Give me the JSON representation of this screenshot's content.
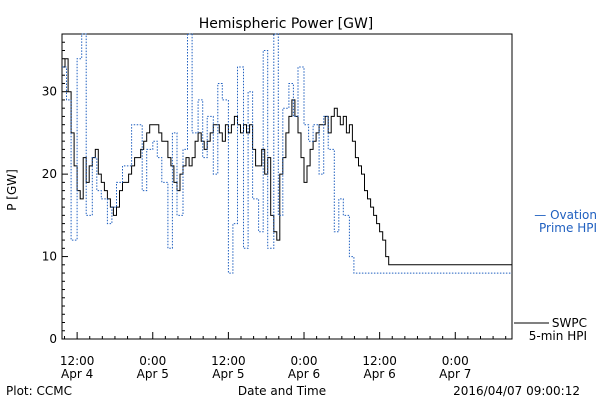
{
  "chart_data": {
    "type": "line",
    "title": "Hemispheric Power [GW]",
    "ylabel": "P [GW]",
    "xlabel": "Date and Time",
    "ylim": [
      0,
      37
    ],
    "yticks": [
      0,
      10,
      20,
      30
    ],
    "xlim": [
      4.4,
      7.375
    ],
    "xticks": [
      {
        "x": 4.5,
        "line1": "12:00",
        "line2": "Apr 4"
      },
      {
        "x": 5.0,
        "line1": "0:00",
        "line2": "Apr 5"
      },
      {
        "x": 5.5,
        "line1": "12:00",
        "line2": "Apr 5"
      },
      {
        "x": 6.0,
        "line1": "0:00",
        "line2": "Apr 6"
      },
      {
        "x": 6.5,
        "line1": "12:00",
        "line2": "Apr 6"
      },
      {
        "x": 7.0,
        "line1": "0:00",
        "line2": "Apr 7"
      }
    ],
    "x_unit": "days (April 2016)",
    "grid": false,
    "series": [
      {
        "name": "SWPC 5-min HPI",
        "color": "#000000",
        "style": "solid",
        "x": [
          4.4,
          4.42,
          4.44,
          4.46,
          4.48,
          4.5,
          4.52,
          4.54,
          4.56,
          4.58,
          4.6,
          4.62,
          4.64,
          4.66,
          4.68,
          4.7,
          4.72,
          4.74,
          4.76,
          4.78,
          4.8,
          4.82,
          4.84,
          4.86,
          4.88,
          4.9,
          4.92,
          4.94,
          4.96,
          4.98,
          5.0,
          5.02,
          5.04,
          5.06,
          5.08,
          5.1,
          5.12,
          5.14,
          5.16,
          5.18,
          5.2,
          5.22,
          5.24,
          5.26,
          5.28,
          5.3,
          5.32,
          5.34,
          5.36,
          5.38,
          5.4,
          5.42,
          5.44,
          5.46,
          5.48,
          5.5,
          5.52,
          5.54,
          5.56,
          5.58,
          5.6,
          5.62,
          5.64,
          5.66,
          5.68,
          5.7,
          5.72,
          5.74,
          5.76,
          5.78,
          5.8,
          5.82,
          5.84,
          5.86,
          5.88,
          5.9,
          5.92,
          5.94,
          5.96,
          5.98,
          6.0,
          6.02,
          6.04,
          6.06,
          6.08,
          6.1,
          6.12,
          6.14,
          6.16,
          6.18,
          6.2,
          6.22,
          6.24,
          6.26,
          6.28,
          6.3,
          6.32,
          6.34,
          6.36,
          6.38,
          6.4,
          6.42,
          6.44,
          6.46,
          6.48,
          6.5,
          6.52,
          6.54,
          6.56,
          6.58,
          6.6,
          6.62,
          6.64,
          6.66,
          6.68,
          6.7,
          6.72,
          6.74,
          6.76,
          6.78,
          6.8,
          6.82,
          6.84,
          6.86,
          6.88,
          6.9,
          6.92,
          6.94,
          6.96,
          6.98,
          7.0,
          7.02,
          7.04,
          7.06,
          7.08,
          7.1,
          7.12,
          7.14,
          7.16,
          7.18,
          7.2,
          7.22,
          7.24,
          7.26,
          7.28,
          7.3,
          7.32,
          7.34,
          7.36,
          7.375
        ],
        "values": [
          33,
          34,
          30,
          25,
          21,
          18,
          17,
          22,
          19,
          21,
          22,
          23,
          20,
          19,
          18,
          17,
          16,
          15,
          16,
          18,
          19,
          19,
          20,
          21,
          22,
          22,
          23,
          24,
          25,
          26,
          26,
          26,
          25,
          24,
          24,
          22,
          21,
          19,
          18,
          20,
          21,
          22,
          21,
          22,
          24,
          25,
          24,
          23,
          24,
          25,
          26,
          26,
          25,
          24,
          26,
          25,
          26,
          27,
          26,
          25,
          26,
          25,
          26,
          23,
          21,
          21,
          23,
          20,
          22,
          15,
          13,
          12,
          20,
          22,
          25,
          27,
          29,
          27,
          25,
          22,
          19,
          21,
          23,
          24,
          25,
          26,
          26,
          27,
          25,
          27,
          28,
          27,
          26,
          27,
          25,
          26,
          24,
          22,
          21,
          20,
          18,
          17,
          16,
          15,
          14,
          13,
          12,
          10,
          9,
          9,
          9,
          9,
          9,
          9,
          9,
          9,
          9,
          9,
          9,
          9,
          9,
          9,
          9,
          9,
          9,
          9,
          9,
          9,
          9,
          9,
          9,
          9,
          9,
          9,
          9,
          9,
          9,
          9,
          9,
          9,
          9,
          9,
          9,
          9,
          9,
          9,
          9,
          9,
          9,
          9
        ]
      },
      {
        "name": "Ovation Prime HPI",
        "color": "#2060c0",
        "style": "dotted",
        "x": [
          4.4,
          4.43,
          4.46,
          4.5,
          4.53,
          4.56,
          4.6,
          4.63,
          4.66,
          4.7,
          4.73,
          4.76,
          4.8,
          4.83,
          4.86,
          4.9,
          4.93,
          4.96,
          5.0,
          5.03,
          5.06,
          5.1,
          5.13,
          5.16,
          5.2,
          5.23,
          5.26,
          5.3,
          5.33,
          5.36,
          5.4,
          5.43,
          5.46,
          5.5,
          5.53,
          5.56,
          5.6,
          5.63,
          5.66,
          5.7,
          5.73,
          5.76,
          5.8,
          5.83,
          5.86,
          5.9,
          5.93,
          5.96,
          6.0,
          6.03,
          6.06,
          6.1,
          6.13,
          6.16,
          6.2,
          6.23,
          6.26,
          6.3,
          6.33,
          6.36,
          6.4,
          6.43,
          6.46,
          6.5,
          6.53,
          6.56,
          6.6,
          6.63,
          6.66,
          6.7,
          6.73,
          6.76,
          6.8,
          6.83,
          6.86,
          6.9,
          6.93,
          6.96,
          7.0,
          7.03,
          7.06,
          7.1,
          7.13,
          7.16,
          7.2,
          7.23,
          7.26,
          7.3,
          7.33,
          7.36,
          7.375
        ],
        "values": [
          33,
          29,
          12,
          34,
          37,
          15,
          22,
          18,
          17,
          14,
          16,
          19,
          21,
          21,
          26,
          26,
          18,
          23,
          24,
          22,
          19,
          11,
          25,
          15,
          23,
          37,
          25,
          29,
          22,
          27,
          20,
          31,
          29,
          8,
          14,
          33,
          11,
          30,
          17,
          13,
          35,
          11,
          37,
          15,
          28,
          31,
          27,
          33,
          26,
          24,
          26,
          20,
          27,
          23,
          13,
          17,
          15,
          10,
          8,
          8,
          8,
          8,
          8,
          8,
          8,
          8,
          8,
          8,
          8,
          8,
          8,
          8,
          8,
          8,
          8,
          8,
          8,
          8,
          8,
          8,
          8,
          8,
          8,
          8,
          8,
          8,
          8,
          8,
          8,
          8,
          8
        ]
      }
    ]
  },
  "legend": {
    "ovation_line1": "— Ovation",
    "ovation_line2": "Prime HPI",
    "swpc_line1": "SWPC",
    "swpc_line2": "5-min HPI"
  },
  "footer": {
    "credit": "Plot: CCMC",
    "timestamp": "2016/04/07 09:00:12"
  }
}
